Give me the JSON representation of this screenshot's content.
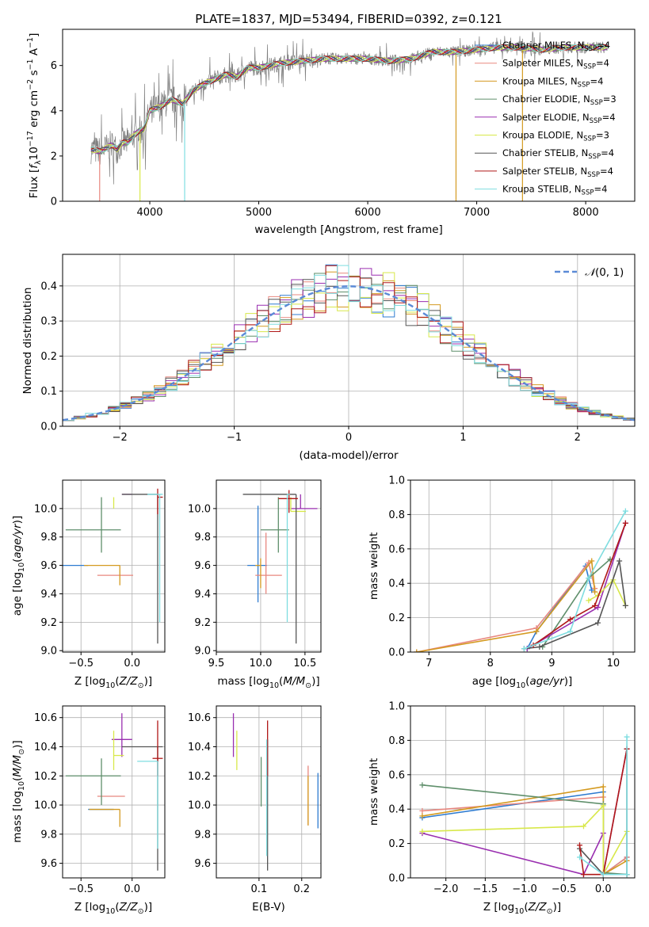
{
  "chart_data": [
    {
      "id": "spectrum",
      "type": "line",
      "title": "PLATE=1837, MJD=53494, FIBERID=0392, z=0.121",
      "xlabel": "wavelength [Angstrom, rest frame]",
      "ylabel": "Flux [f_λ 10^-17 erg cm^-2 s^-1 A^-1]",
      "xlim": [
        3200,
        8450
      ],
      "ylim": [
        0,
        7.6
      ],
      "xticks": [
        4000,
        5000,
        6000,
        7000,
        8000
      ],
      "yticks": [
        0,
        2,
        4,
        6
      ],
      "grid": false,
      "legend_position": "top-right",
      "continuum": {
        "x": [
          3460,
          3550,
          3650,
          3700,
          3750,
          3800,
          3850,
          3900,
          3950,
          4000,
          4100,
          4200,
          4300,
          4400,
          4500,
          4600,
          4700,
          4800,
          4900,
          5000,
          5200,
          5400,
          5600,
          5800,
          6000,
          6200,
          6400,
          6600,
          6800,
          7000,
          7200,
          7400,
          7600,
          7800,
          8000,
          8200
        ],
        "y": [
          2.3,
          2.2,
          2.5,
          2.3,
          2.6,
          2.6,
          2.9,
          3.1,
          3.2,
          4.0,
          4.2,
          4.5,
          4.3,
          4.9,
          5.2,
          5.4,
          5.6,
          5.5,
          5.9,
          5.9,
          6.1,
          6.2,
          6.3,
          6.3,
          6.3,
          6.2,
          6.3,
          6.6,
          6.6,
          6.7,
          6.8,
          6.8,
          6.7,
          6.8,
          6.8,
          6.8
        ]
      },
      "series": [
        {
          "name": "Chabrier MILES, N_SSP=4",
          "color": "#2e7bd0"
        },
        {
          "name": "Salpeter MILES, N_SSP=4",
          "color": "#e8877f"
        },
        {
          "name": "Kroupa MILES, N_SSP=4",
          "color": "#d49a20"
        },
        {
          "name": "Chabrier ELODIE, N_SSP=3",
          "color": "#5f8f6b"
        },
        {
          "name": "Salpeter ELODIE, N_SSP=4",
          "color": "#9a2fb0"
        },
        {
          "name": "Kroupa ELODIE, N_SSP=3",
          "color": "#d8e84a"
        },
        {
          "name": "Chabrier STELIB, N_SSP=4",
          "color": "#555555"
        },
        {
          "name": "Salpeter STELIB, N_SSP=4",
          "color": "#b01818"
        },
        {
          "name": "Kroupa STELIB, N_SSP=4",
          "color": "#7fdde0"
        }
      ],
      "legend_labels": [
        {
          "pre": "Chabrier MILES, N",
          "sub": "SSP",
          "post": "=4"
        },
        {
          "pre": "Salpeter MILES, N",
          "sub": "SSP",
          "post": "=4"
        },
        {
          "pre": "Kroupa MILES, N",
          "sub": "SSP",
          "post": "=4"
        },
        {
          "pre": "Chabrier ELODIE, N",
          "sub": "SSP",
          "post": "=3"
        },
        {
          "pre": "Salpeter ELODIE, N",
          "sub": "SSP",
          "post": "=4"
        },
        {
          "pre": "Kroupa ELODIE, N",
          "sub": "SSP",
          "post": "=3"
        },
        {
          "pre": "Chabrier STELIB, N",
          "sub": "SSP",
          "post": "=4"
        },
        {
          "pre": "Salpeter STELIB, N",
          "sub": "SSP",
          "post": "=4"
        },
        {
          "pre": "Kroupa STELIB, N",
          "sub": "SSP",
          "post": "=4"
        }
      ]
    },
    {
      "id": "residuals",
      "type": "line",
      "xlabel": "(data-model)/error",
      "ylabel": "Normed distribution",
      "xlim": [
        -2.5,
        2.5
      ],
      "ylim": [
        0,
        0.49
      ],
      "xticks": [
        -2,
        -1,
        0,
        1,
        2
      ],
      "yticks": [
        0.0,
        0.1,
        0.2,
        0.3,
        0.4
      ],
      "grid": true,
      "legend_position": "top-right",
      "legend": "N(0,1)",
      "gaussian": {
        "mean": 0,
        "sigma": 1,
        "color": "#5b8ad6"
      },
      "bin_width": 0.1
    },
    {
      "id": "age-vs-Z",
      "type": "scatter",
      "xlabel": "Z [log10(Z/Z_sun)]",
      "ylabel": "age [log10(age/yr)]",
      "xlim": [
        -0.68,
        0.32
      ],
      "ylim": [
        8.99,
        10.2
      ],
      "xticks": [
        -0.5,
        0.0
      ],
      "yticks": [
        9.0,
        9.2,
        9.4,
        9.6,
        9.8,
        10.0
      ],
      "grid": true,
      "points": [
        {
          "x": -0.43,
          "y": 9.6,
          "xerr": [
            0.43,
            0.0
          ],
          "yerr": [
            0.0,
            0.0
          ],
          "color": "#2e7bd0"
        },
        {
          "x": -0.12,
          "y": 9.53,
          "xerr": [
            0.22,
            0.13
          ],
          "yerr": [
            0.0,
            0.0
          ],
          "color": "#e8877f"
        },
        {
          "x": -0.12,
          "y": 9.6,
          "xerr": [
            0.35,
            0.0
          ],
          "yerr": [
            0.14,
            0.0
          ],
          "color": "#d49a20"
        },
        {
          "x": -0.3,
          "y": 9.85,
          "xerr": [
            0.35,
            0.19
          ],
          "yerr": [
            0.16,
            0.23
          ],
          "color": "#5f8f6b"
        },
        {
          "x": -0.1,
          "y": 10.1,
          "xerr": [
            0.0,
            0.1
          ],
          "yerr": [
            0.0,
            0.0
          ],
          "color": "#9a2fb0"
        },
        {
          "x": -0.18,
          "y": 10.0,
          "xerr": [
            0.0,
            0.0
          ],
          "yerr": [
            0.0,
            0.08
          ],
          "color": "#d8e84a"
        },
        {
          "x": 0.25,
          "y": 10.1,
          "xerr": [
            0.35,
            0.0
          ],
          "yerr": [
            1.05,
            0.0
          ],
          "color": "#555555"
        },
        {
          "x": 0.25,
          "y": 10.08,
          "xerr": [
            0.0,
            0.05
          ],
          "yerr": [
            0.12,
            0.06
          ],
          "color": "#b01818"
        },
        {
          "x": 0.27,
          "y": 10.1,
          "xerr": [
            0.12,
            0.03
          ],
          "yerr": [
            0.9,
            0.0
          ],
          "color": "#7fdde0"
        }
      ]
    },
    {
      "id": "age-vs-mass",
      "type": "scatter",
      "xlabel": "mass [log10(M/M_sun)]",
      "xlim": [
        9.5,
        10.68
      ],
      "ylim": [
        8.99,
        10.2
      ],
      "xticks": [
        9.5,
        10.0,
        10.5
      ],
      "yticks": [
        9.0,
        9.2,
        9.4,
        9.6,
        9.8,
        10.0
      ],
      "grid": true,
      "points": [
        {
          "x": 9.97,
          "y": 9.6,
          "xerr": [
            0.12,
            0.1
          ],
          "yerr": [
            0.26,
            0.42
          ],
          "color": "#2e7bd0"
        },
        {
          "x": 10.06,
          "y": 9.53,
          "xerr": [
            0.12,
            0.18
          ],
          "yerr": [
            0.13,
            0.3
          ],
          "color": "#e8877f"
        },
        {
          "x": 10.0,
          "y": 9.6,
          "xerr": [
            0.06,
            0.0
          ],
          "yerr": [
            0.16,
            0.05
          ],
          "color": "#d49a20"
        },
        {
          "x": 10.2,
          "y": 9.85,
          "xerr": [
            0.2,
            0.12
          ],
          "yerr": [
            0.16,
            0.23
          ],
          "color": "#5f8f6b"
        },
        {
          "x": 10.45,
          "y": 10.0,
          "xerr": [
            0.11,
            0.19
          ],
          "yerr": [
            0.0,
            0.1
          ],
          "color": "#9a2fb0"
        },
        {
          "x": 10.34,
          "y": 9.98,
          "xerr": [
            0.0,
            0.17
          ],
          "yerr": [
            0.0,
            0.1
          ],
          "color": "#d8e84a"
        },
        {
          "x": 10.4,
          "y": 10.1,
          "xerr": [
            0.6,
            0.0
          ],
          "yerr": [
            1.05,
            0.0
          ],
          "color": "#555555"
        },
        {
          "x": 10.32,
          "y": 10.07,
          "xerr": [
            0.12,
            0.1
          ],
          "yerr": [
            0.1,
            0.06
          ],
          "color": "#b01818"
        },
        {
          "x": 10.3,
          "y": 10.1,
          "xerr": [
            0.0,
            0.03
          ],
          "yerr": [
            0.9,
            0.0
          ],
          "color": "#7fdde0"
        }
      ]
    },
    {
      "id": "mass-weight-vs-age",
      "type": "line",
      "xlabel": "age [log10(age/yr)]",
      "ylabel": "mass weight",
      "xlim": [
        6.7,
        10.35
      ],
      "ylim": [
        0,
        1
      ],
      "xticks": [
        7,
        8,
        9,
        10
      ],
      "yticks": [
        0.0,
        0.2,
        0.4,
        0.6,
        0.8,
        1.0
      ],
      "grid": true,
      "series": [
        {
          "color": "#2e7bd0",
          "x": [
            8.6,
            8.75,
            9.55,
            9.65
          ],
          "y": [
            0.02,
            0.12,
            0.5,
            0.36
          ]
        },
        {
          "color": "#e8877f",
          "x": [
            6.8,
            8.75,
            9.6,
            9.7
          ],
          "y": [
            0.0,
            0.14,
            0.52,
            0.37
          ]
        },
        {
          "color": "#d49a20",
          "x": [
            6.8,
            8.75,
            9.65,
            9.7
          ],
          "y": [
            0.0,
            0.12,
            0.53,
            0.35
          ]
        },
        {
          "color": "#5f8f6b",
          "x": [
            8.85,
            9.6,
            9.95
          ],
          "y": [
            0.03,
            0.43,
            0.54
          ]
        },
        {
          "color": "#9a2fb0",
          "x": [
            8.6,
            9.75,
            10.2
          ],
          "y": [
            0.02,
            0.26,
            0.75
          ]
        },
        {
          "color": "#d8e84a",
          "x": [
            9.6,
            9.75,
            10.0,
            10.2
          ],
          "y": [
            0.3,
            0.33,
            0.42,
            0.27
          ]
        },
        {
          "color": "#555555",
          "x": [
            8.55,
            8.8,
            9.75,
            10.1,
            10.2
          ],
          "y": [
            0.02,
            0.03,
            0.17,
            0.53,
            0.27
          ]
        },
        {
          "color": "#b01818",
          "x": [
            8.7,
            9.3,
            9.7,
            10.2
          ],
          "y": [
            0.04,
            0.19,
            0.27,
            0.75
          ]
        },
        {
          "color": "#7fdde0",
          "x": [
            8.55,
            9.3,
            9.6,
            10.2
          ],
          "y": [
            0.02,
            0.12,
            0.43,
            0.82
          ]
        }
      ]
    },
    {
      "id": "mass-vs-Z",
      "type": "scatter",
      "xlabel": "Z [log10(Z/Z_sun)]",
      "ylabel": "mass [log10(M/M_sun)]",
      "xlim": [
        -0.68,
        0.32
      ],
      "ylim": [
        9.5,
        10.68
      ],
      "xticks": [
        -0.5,
        0.0
      ],
      "yticks": [
        9.6,
        9.8,
        10.0,
        10.2,
        10.4,
        10.6
      ],
      "grid": true,
      "points": [
        {
          "x": -0.43,
          "y": 9.97,
          "xerr": [
            0.0,
            0.25
          ],
          "yerr": [
            0.0,
            0.0
          ],
          "color": "#2e7bd0"
        },
        {
          "x": -0.22,
          "y": 10.06,
          "xerr": [
            0.12,
            0.15
          ],
          "yerr": [
            0.0,
            0.0
          ],
          "color": "#e8877f"
        },
        {
          "x": -0.12,
          "y": 9.97,
          "xerr": [
            0.3,
            0.0
          ],
          "yerr": [
            0.12,
            0.0
          ],
          "color": "#d49a20"
        },
        {
          "x": -0.3,
          "y": 10.2,
          "xerr": [
            0.35,
            0.19
          ],
          "yerr": [
            0.2,
            0.12
          ],
          "color": "#5f8f6b"
        },
        {
          "x": -0.1,
          "y": 10.45,
          "xerr": [
            0.1,
            0.1
          ],
          "yerr": [
            0.12,
            0.18
          ],
          "color": "#9a2fb0"
        },
        {
          "x": -0.18,
          "y": 10.34,
          "xerr": [
            0.0,
            0.1
          ],
          "yerr": [
            0.1,
            0.17
          ],
          "color": "#d8e84a"
        },
        {
          "x": 0.25,
          "y": 10.4,
          "xerr": [
            0.35,
            0.05
          ],
          "yerr": [
            0.85,
            0.0
          ],
          "color": "#555555"
        },
        {
          "x": 0.25,
          "y": 10.32,
          "xerr": [
            0.05,
            0.05
          ],
          "yerr": [
            0.12,
            0.26
          ],
          "color": "#b01818"
        },
        {
          "x": 0.25,
          "y": 10.3,
          "xerr": [
            0.2,
            0.0
          ],
          "yerr": [
            0.6,
            0.0
          ],
          "color": "#7fdde0"
        }
      ]
    },
    {
      "id": "mass-vs-EBV",
      "type": "scatter",
      "xlabel": "E(B-V)",
      "xlim": [
        0.0,
        0.245
      ],
      "ylim": [
        9.5,
        10.68
      ],
      "xticks": [
        0.1,
        0.2
      ],
      "yticks": [
        9.6,
        9.8,
        10.0,
        10.2,
        10.4,
        10.6
      ],
      "grid": true,
      "points": [
        {
          "x": 0.238,
          "y": 10.0,
          "xerr": [
            0.0,
            0.0
          ],
          "yerr": [
            0.16,
            0.22
          ],
          "color": "#2e7bd0"
        },
        {
          "x": 0.215,
          "y": 10.05,
          "xerr": [
            0.0,
            0.0
          ],
          "yerr": [
            0.19,
            0.22
          ],
          "color": "#e8877f"
        },
        {
          "x": 0.215,
          "y": 10.0,
          "xerr": [
            0.0,
            0.0
          ],
          "yerr": [
            0.14,
            0.2
          ],
          "color": "#d49a20"
        },
        {
          "x": 0.105,
          "y": 10.17,
          "xerr": [
            0.0,
            0.0
          ],
          "yerr": [
            0.18,
            0.16
          ],
          "color": "#5f8f6b"
        },
        {
          "x": 0.04,
          "y": 10.45,
          "xerr": [
            0.0,
            0.0
          ],
          "yerr": [
            0.12,
            0.18
          ],
          "color": "#9a2fb0"
        },
        {
          "x": 0.048,
          "y": 10.37,
          "xerr": [
            0.0,
            0.0
          ],
          "yerr": [
            0.13,
            0.14
          ],
          "color": "#d8e84a"
        },
        {
          "x": 0.12,
          "y": 10.1,
          "xerr": [
            0.0,
            0.0
          ],
          "yerr": [
            0.55,
            0.35
          ],
          "color": "#555555"
        },
        {
          "x": 0.12,
          "y": 10.4,
          "xerr": [
            0.0,
            0.0
          ],
          "yerr": [
            0.2,
            0.18
          ],
          "color": "#b01818"
        },
        {
          "x": 0.118,
          "y": 10.0,
          "xerr": [
            0.0,
            0.0
          ],
          "yerr": [
            0.35,
            0.45
          ],
          "color": "#7fdde0"
        }
      ]
    },
    {
      "id": "mass-weight-vs-Z",
      "type": "line",
      "xlabel": "Z [log10(Z/Z_sun)]",
      "ylabel": "mass weight",
      "xlim": [
        -2.45,
        0.4
      ],
      "ylim": [
        0,
        1
      ],
      "xticks": [
        -2.0,
        -1.5,
        -1.0,
        -0.5,
        0.0
      ],
      "yticks": [
        0.0,
        0.2,
        0.4,
        0.6,
        0.8,
        1.0
      ],
      "grid": true,
      "series": [
        {
          "color": "#2e7bd0",
          "x": [
            -2.3,
            0.0,
            0.0,
            0.3
          ],
          "y": [
            0.35,
            0.5,
            0.02,
            0.12
          ]
        },
        {
          "color": "#e8877f",
          "x": [
            -2.3,
            0.0,
            0.0,
            0.3
          ],
          "y": [
            0.39,
            0.47,
            0.02,
            0.12
          ]
        },
        {
          "color": "#d49a20",
          "x": [
            -2.3,
            0.0,
            0.0,
            0.3
          ],
          "y": [
            0.36,
            0.53,
            0.02,
            0.1
          ]
        },
        {
          "color": "#5f8f6b",
          "x": [
            -2.3,
            0.0,
            0.0,
            0.3
          ],
          "y": [
            0.54,
            0.43,
            0.03,
            0.02
          ]
        },
        {
          "color": "#9a2fb0",
          "x": [
            -2.3,
            -0.25,
            0.0,
            0.0,
            0.3
          ],
          "y": [
            0.26,
            0.02,
            0.26,
            0.02,
            0.75
          ]
        },
        {
          "color": "#d8e84a",
          "x": [
            -2.3,
            -0.25,
            0.0,
            0.0,
            0.3
          ],
          "y": [
            0.27,
            0.3,
            0.42,
            0.02,
            0.27
          ]
        },
        {
          "color": "#555555",
          "x": [
            -0.3,
            0.0,
            0.3,
            0.3
          ],
          "y": [
            0.17,
            0.02,
            0.02,
            0.75
          ]
        },
        {
          "color": "#b01818",
          "x": [
            -0.3,
            -0.25,
            0.0,
            0.3
          ],
          "y": [
            0.19,
            0.02,
            0.02,
            0.75
          ]
        },
        {
          "color": "#7fdde0",
          "x": [
            -0.3,
            0.0,
            0.3,
            0.3
          ],
          "y": [
            0.12,
            0.02,
            0.02,
            0.82
          ]
        }
      ]
    }
  ]
}
